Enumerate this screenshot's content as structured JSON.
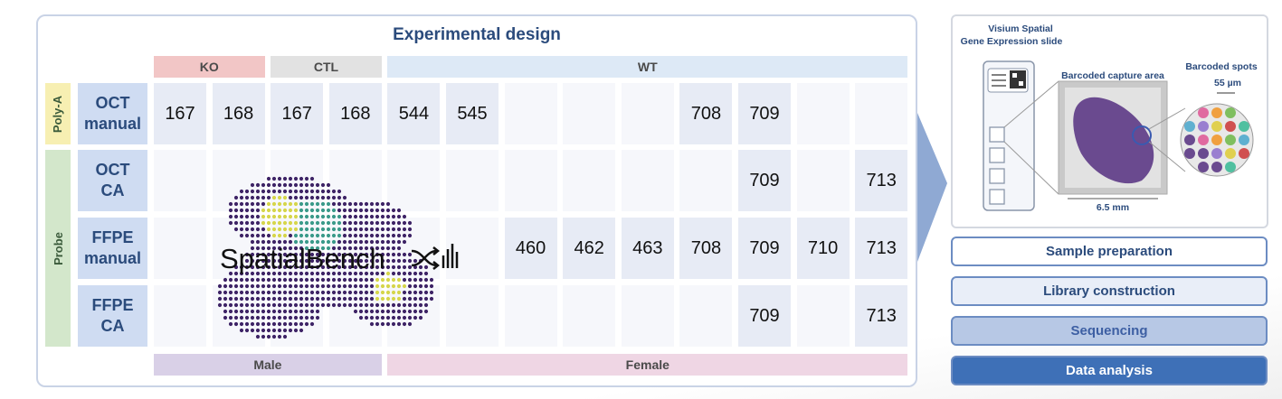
{
  "design": {
    "title": "Experimental design",
    "groups": [
      "KO",
      "CTL",
      "WT"
    ],
    "sexes": [
      "Male",
      "Female"
    ],
    "protocols": [
      "Poly-A",
      "Probe"
    ],
    "rows": [
      {
        "label": "OCT manual",
        "cells": [
          167,
          168,
          167,
          168,
          544,
          545,
          null,
          null,
          null,
          708,
          709,
          null,
          null
        ]
      },
      {
        "label": "OCT CA",
        "cells": [
          null,
          null,
          null,
          null,
          null,
          null,
          null,
          null,
          null,
          null,
          709,
          null,
          713
        ]
      },
      {
        "label": "FFPE manual",
        "cells": [
          null,
          null,
          null,
          null,
          null,
          null,
          460,
          462,
          463,
          708,
          709,
          710,
          713
        ]
      },
      {
        "label": "FFPE CA",
        "cells": [
          null,
          null,
          null,
          null,
          null,
          null,
          null,
          null,
          null,
          null,
          709,
          null,
          713
        ]
      }
    ],
    "logo": "SpatialBench"
  },
  "slide": {
    "title_lines": [
      "Visium Spatial",
      "Gene Expression slide"
    ],
    "capture_area": "Barcoded capture area",
    "spots": "Barcoded spots",
    "spot_size": "55 µm",
    "area_size": "6.5 mm"
  },
  "steps": [
    "Sample preparation",
    "Library construction",
    "Sequencing",
    "Data analysis"
  ]
}
